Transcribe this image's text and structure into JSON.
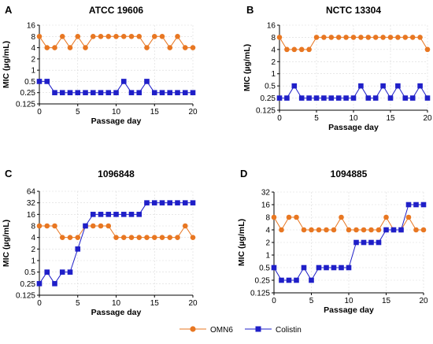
{
  "legend": {
    "items": [
      {
        "label": "OMN6",
        "color": "#E87722",
        "marker": "circle"
      },
      {
        "label": "Colistin",
        "color": "#1F1FC8",
        "marker": "square"
      }
    ]
  },
  "chart_data": [
    {
      "panel": "A",
      "title": "ATCC 19606",
      "type": "line",
      "xlabel": "Passage day",
      "ylabel": "MIC (µg/mL)",
      "yscale": "log2",
      "xlim": [
        0,
        20
      ],
      "ylim": [
        0.125,
        16
      ],
      "xticks": [
        "0",
        "5",
        "10",
        "15",
        "20"
      ],
      "yticks": [
        "0.125",
        "0.25",
        "0.5",
        "1",
        "2",
        "4",
        "8",
        "16"
      ],
      "grid": true,
      "x": [
        0,
        1,
        2,
        3,
        4,
        5,
        6,
        7,
        8,
        9,
        10,
        11,
        12,
        13,
        14,
        15,
        16,
        17,
        18,
        19,
        20
      ],
      "series": [
        {
          "name": "OMN6",
          "values": [
            8,
            4,
            4,
            8,
            4,
            8,
            4,
            8,
            8,
            8,
            8,
            8,
            8,
            8,
            4,
            8,
            8,
            4,
            8,
            4,
            4
          ]
        },
        {
          "name": "Colistin",
          "values": [
            0.5,
            0.5,
            0.25,
            0.25,
            0.25,
            0.25,
            0.25,
            0.25,
            0.25,
            0.25,
            0.25,
            0.5,
            0.25,
            0.25,
            0.5,
            0.25,
            0.25,
            0.25,
            0.25,
            0.25,
            0.25
          ]
        }
      ]
    },
    {
      "panel": "B",
      "title": "NCTC 13304",
      "type": "line",
      "xlabel": "Passage day",
      "ylabel": "MIC (µg/mL)",
      "yscale": "log2",
      "xlim": [
        0,
        20
      ],
      "ylim": [
        0.125,
        16
      ],
      "xticks": [
        "0",
        "5",
        "10",
        "15",
        "20"
      ],
      "yticks": [
        "0.125",
        "0.25",
        "0.5",
        "1",
        "2",
        "4",
        "8",
        "16"
      ],
      "grid": true,
      "x": [
        0,
        1,
        2,
        3,
        4,
        5,
        6,
        7,
        8,
        9,
        10,
        11,
        12,
        13,
        14,
        15,
        16,
        17,
        18,
        19,
        20
      ],
      "series": [
        {
          "name": "OMN6",
          "values": [
            8,
            4,
            4,
            4,
            4,
            8,
            8,
            8,
            8,
            8,
            8,
            8,
            8,
            8,
            8,
            8,
            8,
            8,
            8,
            8,
            4
          ]
        },
        {
          "name": "Colistin",
          "values": [
            0.25,
            0.25,
            0.5,
            0.25,
            0.25,
            0.25,
            0.25,
            0.25,
            0.25,
            0.25,
            0.25,
            0.5,
            0.25,
            0.25,
            0.5,
            0.25,
            0.5,
            0.25,
            0.25,
            0.5,
            0.25
          ]
        }
      ]
    },
    {
      "panel": "C",
      "title": "1096848",
      "type": "line",
      "xlabel": "Passage day",
      "ylabel": "MIC (µg/mL)",
      "yscale": "log2",
      "xlim": [
        0,
        20
      ],
      "ylim": [
        0.125,
        64
      ],
      "xticks": [
        "0",
        "5",
        "10",
        "15",
        "20"
      ],
      "yticks": [
        "0.125",
        "0.25",
        "0.5",
        "1",
        "2",
        "4",
        "8",
        "16",
        "32",
        "64"
      ],
      "grid": true,
      "x": [
        0,
        1,
        2,
        3,
        4,
        5,
        6,
        7,
        8,
        9,
        10,
        11,
        12,
        13,
        14,
        15,
        16,
        17,
        18,
        19,
        20
      ],
      "series": [
        {
          "name": "OMN6",
          "values": [
            8,
            8,
            8,
            4,
            4,
            4,
            8,
            8,
            8,
            8,
            4,
            4,
            4,
            4,
            4,
            4,
            4,
            4,
            4,
            8,
            4
          ]
        },
        {
          "name": "Colistin",
          "values": [
            0.25,
            0.5,
            0.25,
            0.5,
            0.5,
            2,
            8,
            16,
            16,
            16,
            16,
            16,
            16,
            16,
            32,
            32,
            32,
            32,
            32,
            32,
            32
          ]
        }
      ]
    },
    {
      "panel": "D",
      "title": "1094885",
      "type": "line",
      "xlabel": "Passage day",
      "ylabel": "MIC (µg/mL)",
      "yscale": "log2",
      "xlim": [
        0,
        20
      ],
      "ylim": [
        0.125,
        32
      ],
      "xticks": [
        "0",
        "5",
        "10",
        "15",
        "20"
      ],
      "yticks": [
        "0.125",
        "0.25",
        "0.5",
        "1",
        "2",
        "4",
        "8",
        "16",
        "32"
      ],
      "grid": true,
      "x": [
        0,
        1,
        2,
        3,
        4,
        5,
        6,
        7,
        8,
        9,
        10,
        11,
        12,
        13,
        14,
        15,
        16,
        17,
        18,
        19,
        20
      ],
      "series": [
        {
          "name": "OMN6",
          "values": [
            8,
            4,
            8,
            8,
            4,
            4,
            4,
            4,
            4,
            8,
            4,
            4,
            4,
            4,
            4,
            8,
            4,
            4,
            8,
            4,
            4
          ]
        },
        {
          "name": "Colistin",
          "values": [
            0.5,
            0.25,
            0.25,
            0.25,
            0.5,
            0.25,
            0.5,
            0.5,
            0.5,
            0.5,
            0.5,
            2,
            2,
            2,
            2,
            4,
            4,
            4,
            16,
            16,
            16
          ]
        }
      ]
    }
  ]
}
